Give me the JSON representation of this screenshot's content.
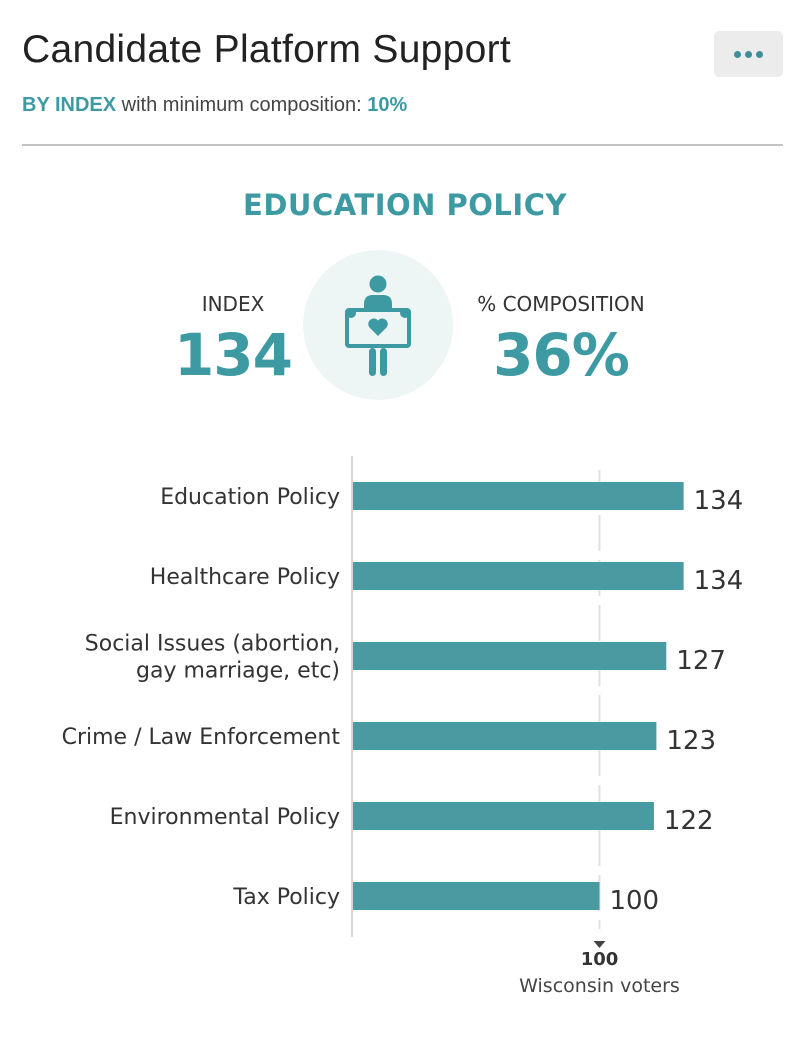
{
  "header": {
    "title": "Candidate Platform Support",
    "subtitle_prefix": "BY INDEX",
    "subtitle_middle": " with minimum composition: ",
    "subtitle_value": "10%"
  },
  "highlight": {
    "section_title": "EDUCATION POLICY",
    "index_label": "INDEX",
    "index_value": "134",
    "composition_label": "% COMPOSITION",
    "composition_value": "36%",
    "icon": "person-holding-heart-sign-icon"
  },
  "colors": {
    "accent": "#3e9aa2",
    "bar": "#4a9aa2",
    "icon_bg": "#eef5f5"
  },
  "chart_data": {
    "type": "bar",
    "orientation": "horizontal",
    "categories": [
      [
        "Education Policy"
      ],
      [
        "Healthcare Policy"
      ],
      [
        "Social Issues (abortion,",
        "gay marriage, etc)"
      ],
      [
        "Crime / Law Enforcement"
      ],
      [
        "Environmental Policy"
      ],
      [
        "Tax Policy"
      ]
    ],
    "values": [
      134,
      134,
      127,
      123,
      122,
      100
    ],
    "data_labels": [
      "134",
      "134",
      "127",
      "123",
      "122",
      "100"
    ],
    "reference_line": {
      "value": 100,
      "label": "100",
      "caption": "Wisconsin voters"
    },
    "xlim": [
      0,
      139
    ],
    "grid": false
  }
}
